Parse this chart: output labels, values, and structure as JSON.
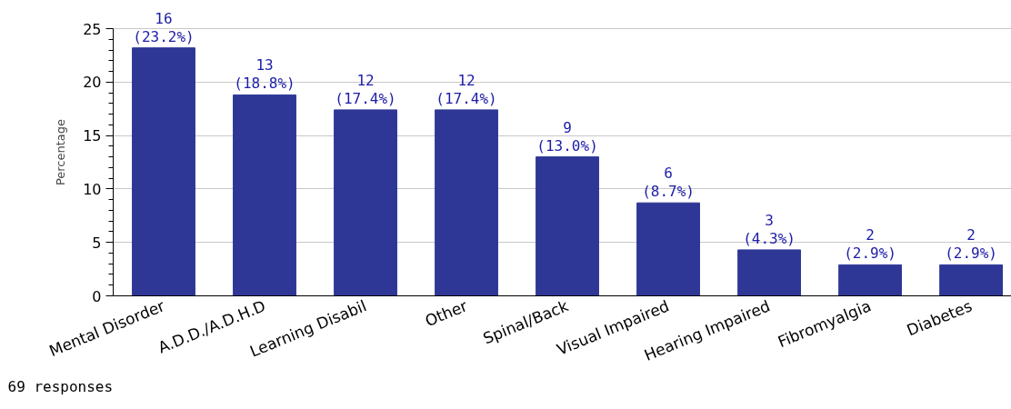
{
  "chart_data": {
    "type": "bar",
    "ylabel": "Percentage",
    "categories": [
      "Mental Disorder",
      "A.D.D./A.D.H.D",
      "Learning Disabil",
      "Other",
      "Spinal/Back",
      "Visual Impaired",
      "Hearing Impaired",
      "Fibromyalgia",
      "Diabetes"
    ],
    "values": [
      23.2,
      18.8,
      17.4,
      17.4,
      13.0,
      8.7,
      4.3,
      2.9,
      2.9
    ],
    "value_labels": [
      "16\n(23.2%)",
      "13\n(18.8%)",
      "12\n(17.4%)",
      "12\n(17.4%)",
      "9\n(13.0%)",
      "6\n(8.7%)",
      "3\n(4.3%)",
      "2\n(2.9%)",
      "2\n(2.9%)"
    ],
    "color": "#2e3796",
    "ylim": [
      0,
      25
    ],
    "yticks": [
      0,
      5,
      10,
      15,
      20,
      25
    ],
    "grid": "y",
    "annotations": [
      "69 responses"
    ]
  }
}
